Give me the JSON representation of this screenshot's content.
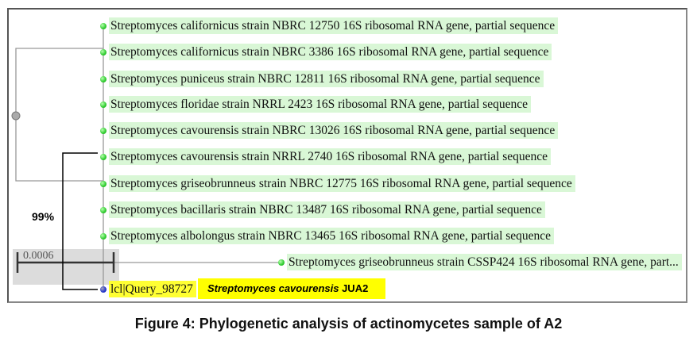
{
  "tree": {
    "leaves": [
      "Streptomyces californicus strain NBRC 12750 16S ribosomal RNA gene, partial sequence",
      "Streptomyces californicus strain NBRC 3386 16S ribosomal RNA gene, partial sequence",
      "Streptomyces puniceus strain NBRC 12811 16S ribosomal RNA gene, partial sequence",
      "Streptomyces floridae strain NRRL 2423 16S ribosomal RNA gene, partial sequence",
      "Streptomyces cavourensis strain NBRC 13026 16S ribosomal RNA gene, partial sequence",
      "Streptomyces cavourensis strain NRRL 2740 16S ribosomal RNA gene, partial sequence",
      "Streptomyces griseobrunneus strain NBRC 12775 16S ribosomal RNA gene, partial sequence",
      "Streptomyces bacillaris strain NBRC 13487 16S ribosomal RNA gene, partial sequence",
      "Streptomyces albolongus strain NBRC 13465 16S ribosomal RNA gene, partial sequence",
      "Streptomyces griseobrunneus strain CSSP424 16S ribosomal RNA gene, part..."
    ],
    "query": "lcl|Query_98727",
    "query_species_italic": "Streptomyces cavourensis",
    "query_species_suffix": " JUA2",
    "scale": "0.0006",
    "bootstrap": "99%",
    "colors": {
      "leaf_bg": "#d9f7d6",
      "query_highlight": "#ffff00",
      "node": "#2ecc2e"
    }
  },
  "caption": "Figure 4: Phylogenetic analysis of actinomycetes sample of A2"
}
